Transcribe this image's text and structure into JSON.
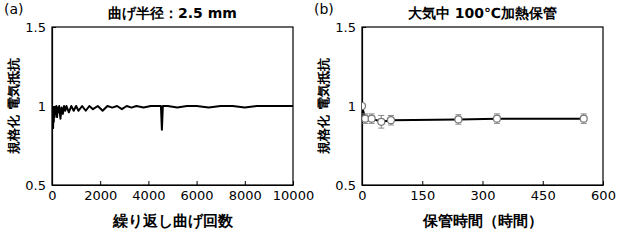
{
  "chart_data": [
    {
      "type": "line",
      "panel_label": "(a)",
      "title": "曲げ半径：2.5 mm",
      "x_label": "繰り返し曲げ回数",
      "y_label": "規格化 電気抵抗",
      "x": [
        0,
        15,
        30,
        45,
        60,
        75,
        90,
        110,
        130,
        150,
        180,
        210,
        240,
        270,
        300,
        350,
        400,
        450,
        500,
        550,
        600,
        700,
        800,
        900,
        1000,
        1100,
        1250,
        1400,
        1550,
        1700,
        1900,
        2100,
        2300,
        2500,
        2700,
        2900,
        3100,
        3300,
        3500,
        3800,
        4100,
        4400,
        4520,
        4560,
        4600,
        4800,
        5200,
        5600,
        6000,
        6500,
        7000,
        7500,
        8000,
        8500,
        9000,
        9500,
        10000
      ],
      "values": [
        1.0,
        0.88,
        0.99,
        0.86,
        0.98,
        0.9,
        0.99,
        0.93,
        0.99,
        0.95,
        1.0,
        0.93,
        0.99,
        0.96,
        1.0,
        0.92,
        0.99,
        0.95,
        1.0,
        0.97,
        1.0,
        0.96,
        1.0,
        0.97,
        1.0,
        0.97,
        1.0,
        0.97,
        1.0,
        0.98,
        1.0,
        0.97,
        1.0,
        0.99,
        1.0,
        0.98,
        1.0,
        0.99,
        1.0,
        0.99,
        1.0,
        1.0,
        1.0,
        0.85,
        1.0,
        1.0,
        0.99,
        1.0,
        1.0,
        0.99,
        1.0,
        1.0,
        0.99,
        1.0,
        1.0,
        1.0,
        1.0
      ],
      "color": "#000000",
      "xlim": [
        0,
        10000
      ],
      "xticks": [
        0,
        2000,
        4000,
        6000,
        8000,
        10000
      ],
      "ylim": [
        0.5,
        1.5
      ],
      "yticks": [
        0.5,
        1,
        1.5
      ]
    },
    {
      "type": "line",
      "panel_label": "(b)",
      "title": "大気中 100℃加熱保管",
      "x_label": "保管時間（時間）",
      "y_label": "規格化 電気抵抗",
      "x": [
        0,
        8,
        24,
        48,
        72,
        240,
        336,
        552
      ],
      "values": [
        1.0,
        0.92,
        0.92,
        0.9,
        0.91,
        0.915,
        0.92,
        0.92
      ],
      "errors": [
        0,
        0.03,
        0.03,
        0.04,
        0.03,
        0.03,
        0.03,
        0.03
      ],
      "color": "#000000",
      "marker": "circle",
      "xlim": [
        0,
        600
      ],
      "xticks": [
        0,
        150,
        300,
        450,
        600
      ],
      "ylim": [
        0.5,
        1.5
      ],
      "yticks": [
        0.5,
        1,
        1.5
      ]
    }
  ]
}
